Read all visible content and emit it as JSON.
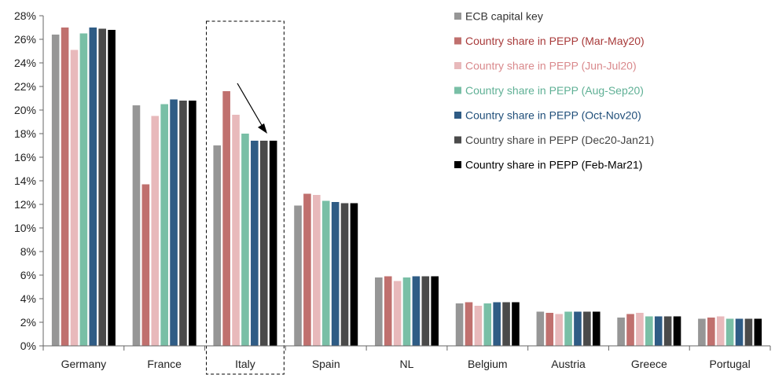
{
  "chart_data": {
    "type": "bar",
    "title": "",
    "xlabel": "",
    "ylabel": "",
    "ylim": [
      0,
      28
    ],
    "ytick_values": [
      0,
      2,
      4,
      6,
      8,
      10,
      12,
      14,
      16,
      18,
      20,
      22,
      24,
      26,
      28
    ],
    "ytick_labels": [
      "0%",
      "2%",
      "4%",
      "6%",
      "8%",
      "10%",
      "12%",
      "14%",
      "16%",
      "18%",
      "20%",
      "22%",
      "24%",
      "26%",
      "28%"
    ],
    "grid": false,
    "legend_position": "top-right",
    "highlighted_category": "Italy",
    "annotation": "downward arrow over Italy bars",
    "categories": [
      "Germany",
      "France",
      "Italy",
      "Spain",
      "NL",
      "Belgium",
      "Austria",
      "Greece",
      "Portugal"
    ],
    "series": [
      {
        "name": "ECB capital key",
        "color": "#969696",
        "label_color": "#333333",
        "values": [
          26.4,
          20.4,
          17.0,
          11.9,
          5.8,
          3.6,
          2.9,
          2.4,
          2.3
        ]
      },
      {
        "name": "Country share in PEPP (Mar-May20)",
        "color": "#C0706E",
        "label_color": "#A83A3A",
        "values": [
          27.0,
          13.7,
          21.6,
          12.9,
          5.9,
          3.7,
          2.8,
          2.7,
          2.4
        ]
      },
      {
        "name": "Country share in PEPP (Jun-Jul20)",
        "color": "#E8B9BB",
        "label_color": "#D9898C",
        "values": [
          25.1,
          19.5,
          19.6,
          12.8,
          5.5,
          3.4,
          2.7,
          2.8,
          2.5
        ]
      },
      {
        "name": "Country share in PEPP (Aug-Sep20)",
        "color": "#79BFA6",
        "label_color": "#5FB095",
        "values": [
          26.5,
          20.5,
          18.0,
          12.3,
          5.8,
          3.6,
          2.9,
          2.5,
          2.3
        ]
      },
      {
        "name": "Country share in PEPP (Oct-Nov20)",
        "color": "#2F5C85",
        "label_color": "#1F4E79",
        "values": [
          27.0,
          20.9,
          17.4,
          12.2,
          5.9,
          3.7,
          2.9,
          2.5,
          2.3
        ]
      },
      {
        "name": "Country share in PEPP (Dec20-Jan21)",
        "color": "#4A4A4A",
        "label_color": "#444444",
        "values": [
          26.9,
          20.8,
          17.4,
          12.1,
          5.9,
          3.7,
          2.9,
          2.5,
          2.3
        ]
      },
      {
        "name": "Country share in PEPP (Feb-Mar21)",
        "color": "#000000",
        "label_color": "#000000",
        "values": [
          26.8,
          20.8,
          17.4,
          12.1,
          5.9,
          3.7,
          2.9,
          2.5,
          2.3
        ]
      }
    ]
  }
}
